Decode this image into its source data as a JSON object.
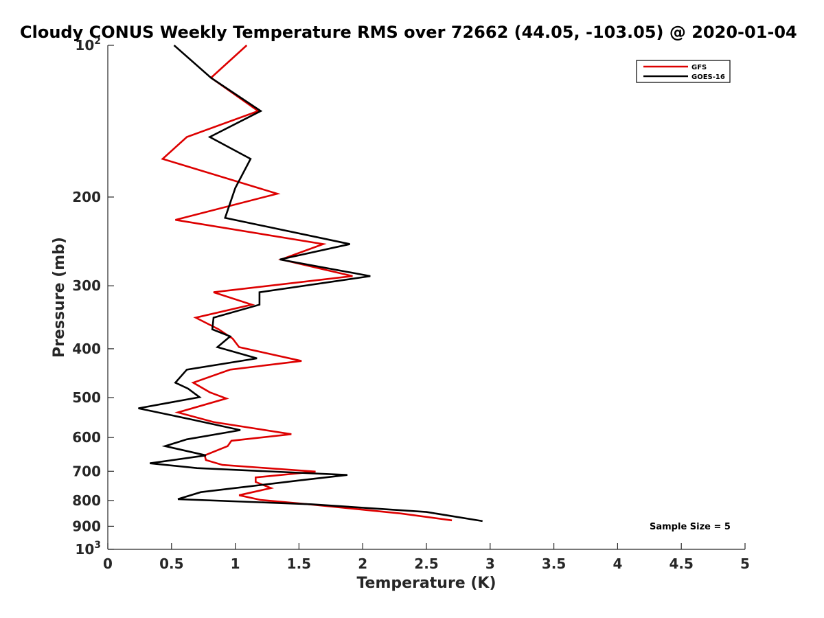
{
  "chart_data": {
    "type": "line",
    "title": "Cloudy CONUS Weekly Temperature RMS over 72662 (44.05, -103.05) @ 2020-01-04",
    "xlabel": "Temperature (K)",
    "ylabel": "Pressure (mb)",
    "xlim": [
      0,
      5
    ],
    "ylim": [
      100,
      1000
    ],
    "y_scale": "log",
    "y_reversed": true,
    "x_ticks": [
      "0",
      "0.5",
      "1",
      "1.5",
      "2",
      "2.5",
      "3",
      "3.5",
      "4",
      "4.5",
      "5"
    ],
    "y_ticks": [
      {
        "value": 100,
        "base": "10",
        "exp": "2"
      },
      {
        "value": 200,
        "label": "200"
      },
      {
        "value": 300,
        "label": "300"
      },
      {
        "value": 400,
        "label": "400"
      },
      {
        "value": 500,
        "label": "500"
      },
      {
        "value": 600,
        "label": "600"
      },
      {
        "value": 700,
        "label": "700"
      },
      {
        "value": 800,
        "label": "800"
      },
      {
        "value": 900,
        "label": "900"
      },
      {
        "value": 1000,
        "base": "10",
        "exp": "3"
      }
    ],
    "grid": false,
    "legend_position": "top-right",
    "annotation": "Sample Size = 5",
    "series": [
      {
        "name": "GFS",
        "color": "#dd0000",
        "points": [
          [
            1.09,
            100
          ],
          [
            0.81,
            116
          ],
          [
            1.18,
            135
          ],
          [
            0.62,
            152
          ],
          [
            0.43,
            168
          ],
          [
            1.33,
            197
          ],
          [
            0.53,
            222
          ],
          [
            1.69,
            248
          ],
          [
            1.36,
            266
          ],
          [
            1.92,
            287
          ],
          [
            0.83,
            309
          ],
          [
            1.13,
            327
          ],
          [
            0.69,
            347
          ],
          [
            0.87,
            366
          ],
          [
            0.98,
            382
          ],
          [
            1.03,
            397
          ],
          [
            1.52,
            423
          ],
          [
            0.96,
            440
          ],
          [
            0.67,
            467
          ],
          [
            0.8,
            488
          ],
          [
            0.93,
            502
          ],
          [
            0.55,
            535
          ],
          [
            0.83,
            559
          ],
          [
            1.44,
            591
          ],
          [
            0.97,
            609
          ],
          [
            0.94,
            624
          ],
          [
            0.76,
            651
          ],
          [
            0.77,
            665
          ],
          [
            0.9,
            680
          ],
          [
            1.63,
            701
          ],
          [
            1.16,
            720
          ],
          [
            1.16,
            735
          ],
          [
            1.28,
            756
          ],
          [
            1.03,
            781
          ],
          [
            1.2,
            798
          ],
          [
            1.6,
            815
          ],
          [
            2.3,
            849
          ],
          [
            2.7,
            876
          ]
        ]
      },
      {
        "name": "GOES-16",
        "color": "#000000",
        "points": [
          [
            0.52,
            100
          ],
          [
            0.81,
            116
          ],
          [
            1.2,
            135
          ],
          [
            0.8,
            152
          ],
          [
            1.12,
            168
          ],
          [
            1.0,
            192
          ],
          [
            0.92,
            220
          ],
          [
            1.9,
            248
          ],
          [
            1.35,
            266
          ],
          [
            2.06,
            287
          ],
          [
            1.19,
            309
          ],
          [
            1.19,
            327
          ],
          [
            0.83,
            347
          ],
          [
            0.82,
            366
          ],
          [
            0.96,
            378
          ],
          [
            0.86,
            397
          ],
          [
            1.17,
            418
          ],
          [
            0.62,
            440
          ],
          [
            0.53,
            467
          ],
          [
            0.63,
            480
          ],
          [
            0.72,
            499
          ],
          [
            0.24,
            525
          ],
          [
            0.65,
            552
          ],
          [
            1.04,
            580
          ],
          [
            0.62,
            605
          ],
          [
            0.45,
            624
          ],
          [
            0.77,
            651
          ],
          [
            0.33,
            675
          ],
          [
            0.7,
            690
          ],
          [
            1.88,
            712
          ],
          [
            1.5,
            730
          ],
          [
            0.73,
            770
          ],
          [
            0.55,
            795
          ],
          [
            1.6,
            814
          ],
          [
            2.5,
            843
          ],
          [
            2.94,
            879
          ]
        ]
      }
    ]
  }
}
